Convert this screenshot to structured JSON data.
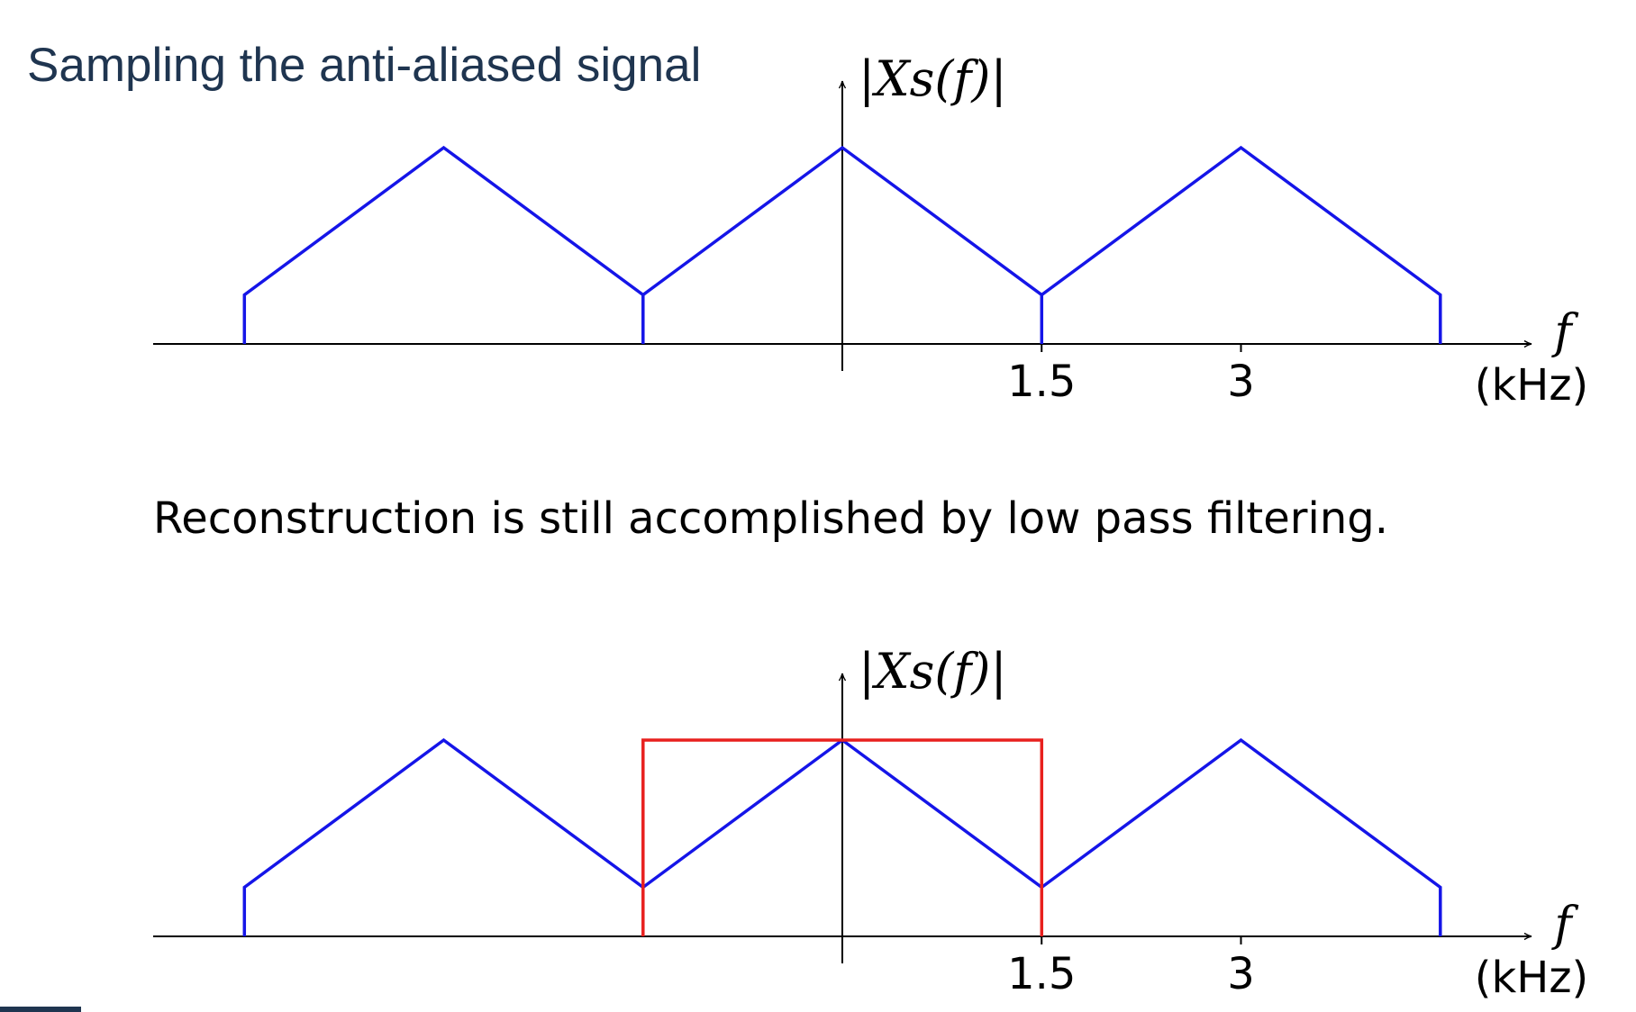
{
  "slide": {
    "title": "Sampling the anti-aliased signal",
    "caption": "Reconstruction is still accomplished by low pass filtering."
  },
  "chart_data": [
    {
      "type": "line",
      "ylabel": "|Xs(f)|",
      "xlabel": "f",
      "xunit": "(kHz)",
      "xlim": [
        -4.5,
        5.5
      ],
      "ylim": [
        0,
        1
      ],
      "xticks": [
        1.5,
        3
      ],
      "xtick_labels": [
        "1.5",
        "3"
      ],
      "series": [
        {
          "color": "#1515e8",
          "x": [
            -4.5,
            -4.5,
            -3,
            -1.5,
            -1.5,
            -1.5,
            0,
            1.5,
            1.5,
            1.5,
            3,
            4.5,
            4.5
          ],
          "y": [
            0,
            0.25,
            1,
            0.25,
            0,
            0.25,
            1,
            0.25,
            0,
            0.25,
            1,
            0.25,
            0
          ]
        }
      ]
    },
    {
      "type": "line",
      "ylabel": "|Xs(f)|",
      "xlabel": "f",
      "xunit": "(kHz)",
      "xlim": [
        -4.5,
        5.5
      ],
      "ylim": [
        0,
        1
      ],
      "xticks": [
        1.5,
        3
      ],
      "xtick_labels": [
        "1.5",
        "3"
      ],
      "series": [
        {
          "color": "#1515e8",
          "x": [
            -4.5,
            -4.5,
            -3,
            -1.5,
            0,
            1.5,
            3,
            4.5,
            4.5
          ],
          "y": [
            0,
            0.25,
            1,
            0.25,
            1,
            0.25,
            1,
            0.25,
            0
          ]
        },
        {
          "color": "#e8201e",
          "x": [
            -1.5,
            -1.5,
            1.5,
            1.5
          ],
          "y": [
            0,
            1,
            1,
            0
          ]
        }
      ]
    }
  ],
  "colors": {
    "title": "#1f3550",
    "axis": "#000000"
  }
}
